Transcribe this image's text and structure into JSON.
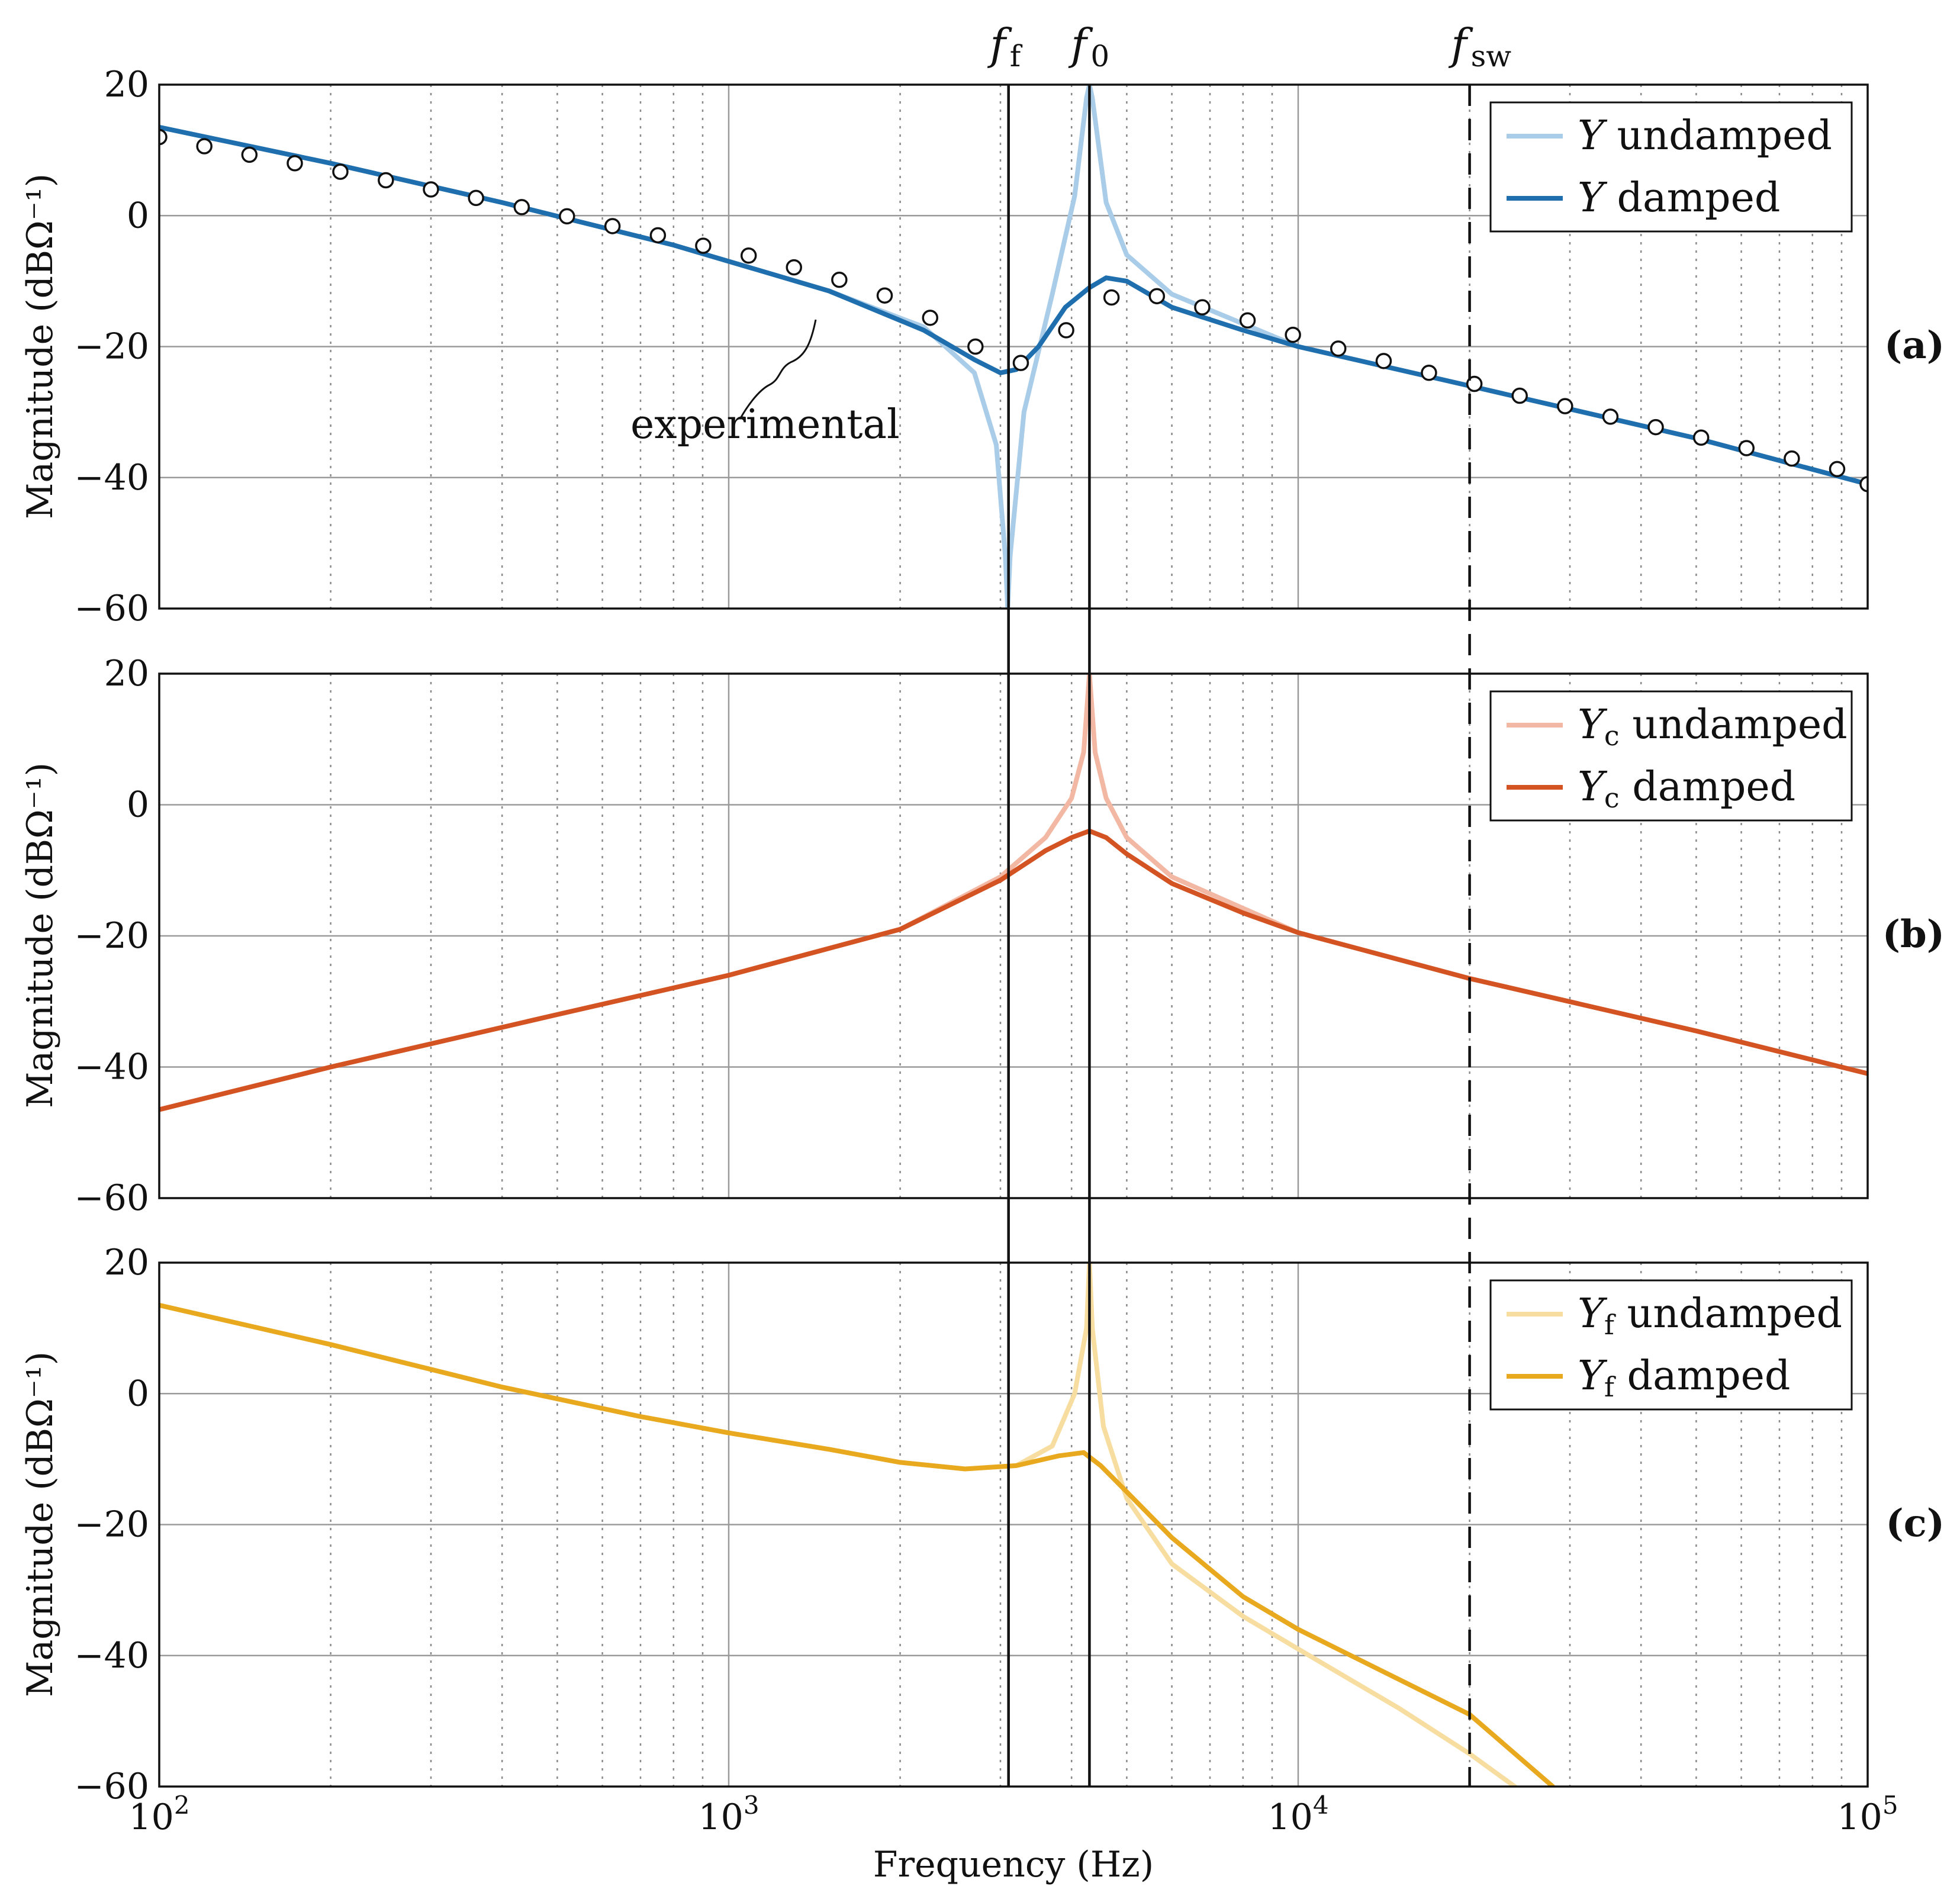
{
  "chart_data": {
    "type": "line",
    "x_scale": "log",
    "xlim": [
      100,
      100000
    ],
    "xlabel": "Frequency (Hz)",
    "x_tick_labels": [
      {
        "value": 100,
        "base": "10",
        "exp": "2"
      },
      {
        "value": 1000,
        "base": "10",
        "exp": "3"
      },
      {
        "value": 10000,
        "base": "10",
        "exp": "4"
      },
      {
        "value": 100000,
        "base": "10",
        "exp": "5"
      }
    ],
    "vertical_markers": [
      {
        "name": "ff",
        "label": "f",
        "sub": "f",
        "frequency": 3100,
        "style": "solid"
      },
      {
        "name": "f0",
        "label": "f",
        "sub": "0",
        "frequency": 4300,
        "style": "solid"
      },
      {
        "name": "fsw",
        "label": "f",
        "sub": "sw",
        "frequency": 20000,
        "style": "dashed"
      }
    ],
    "panels": [
      {
        "id": "a",
        "panel_label": "(a)",
        "ylabel": "Magnitude (dBΩ⁻¹)",
        "ylim": [
          -60,
          20
        ],
        "yticks": [
          20,
          0,
          -20,
          -40,
          -60
        ],
        "ytick_labels": [
          "20",
          "0",
          "−20",
          "−40",
          "−60"
        ],
        "legend": [
          {
            "symbol": "Y",
            "sub": "",
            "text": " undamped",
            "color": "#a9cce8"
          },
          {
            "symbol": "Y",
            "sub": "",
            "text": " damped",
            "color": "#1f6fae"
          }
        ],
        "series": [
          {
            "name": "Y undamped",
            "color": "#a9cce8",
            "points": [
              [
                100,
                13.5
              ],
              [
                200,
                8
              ],
              [
                400,
                2
              ],
              [
                800,
                -4.5
              ],
              [
                1500,
                -11.5
              ],
              [
                2200,
                -17
              ],
              [
                2700,
                -24
              ],
              [
                2950,
                -35
              ],
              [
                3060,
                -52
              ],
              [
                3090,
                -60
              ],
              [
                3120,
                -52
              ],
              [
                3300,
                -30
              ],
              [
                3700,
                -12
              ],
              [
                4050,
                3
              ],
              [
                4250,
                18
              ],
              [
                4300,
                20
              ],
              [
                4350,
                18
              ],
              [
                4600,
                2
              ],
              [
                5000,
                -6
              ],
              [
                6000,
                -12
              ],
              [
                8000,
                -16.5
              ],
              [
                10000,
                -20
              ],
              [
                20000,
                -26
              ],
              [
                50000,
                -34
              ],
              [
                100000,
                -41
              ]
            ]
          },
          {
            "name": "Y damped",
            "color": "#1f6fae",
            "points": [
              [
                100,
                13.5
              ],
              [
                200,
                8
              ],
              [
                400,
                2
              ],
              [
                800,
                -4.5
              ],
              [
                1500,
                -11.5
              ],
              [
                2200,
                -17.5
              ],
              [
                2700,
                -22
              ],
              [
                3000,
                -24
              ],
              [
                3200,
                -23.5
              ],
              [
                3500,
                -20
              ],
              [
                3900,
                -14
              ],
              [
                4300,
                -11
              ],
              [
                4600,
                -9.5
              ],
              [
                5000,
                -10
              ],
              [
                6000,
                -14
              ],
              [
                8000,
                -17.5
              ],
              [
                10000,
                -20
              ],
              [
                20000,
                -26
              ],
              [
                50000,
                -34
              ],
              [
                100000,
                -41
              ]
            ]
          }
        ],
        "experimental": {
          "label": "experimental",
          "points": [
            [
              100,
              12
            ],
            [
              120,
              10.6
            ],
            [
              144,
              9.3
            ],
            [
              173,
              8
            ],
            [
              208,
              6.7
            ],
            [
              250,
              5.4
            ],
            [
              300,
              4
            ],
            [
              360,
              2.7
            ],
            [
              433,
              1.3
            ],
            [
              520,
              -0.1
            ],
            [
              625,
              -1.6
            ],
            [
              751,
              -3
            ],
            [
              902,
              -4.6
            ],
            [
              1084,
              -6.1
            ],
            [
              1302,
              -7.9
            ],
            [
              1564,
              -9.8
            ],
            [
              1879,
              -12.2
            ],
            [
              2258,
              -15.6
            ],
            [
              2712,
              -20
            ],
            [
              3258,
              -22.5
            ],
            [
              3914,
              -17.5
            ],
            [
              4701,
              -12.5
            ],
            [
              5648,
              -12.3
            ],
            [
              6785,
              -14
            ],
            [
              8150,
              -16
            ],
            [
              9790,
              -18.2
            ],
            [
              11760,
              -20.3
            ],
            [
              14130,
              -22.2
            ],
            [
              16970,
              -24
            ],
            [
              20390,
              -25.7
            ],
            [
              24490,
              -27.5
            ],
            [
              29420,
              -29.1
            ],
            [
              35340,
              -30.7
            ],
            [
              42450,
              -32.3
            ],
            [
              51000,
              -33.9
            ],
            [
              61260,
              -35.5
            ],
            [
              73590,
              -37.1
            ],
            [
              88400,
              -38.7
            ],
            [
              100000,
              -41
            ]
          ]
        }
      },
      {
        "id": "b",
        "panel_label": "(b)",
        "ylabel": "Magnitude (dBΩ⁻¹)",
        "ylim": [
          -60,
          20
        ],
        "yticks": [
          20,
          0,
          -20,
          -40,
          -60
        ],
        "ytick_labels": [
          "20",
          "0",
          "−20",
          "−40",
          "−60"
        ],
        "legend": [
          {
            "symbol": "Y",
            "sub": "c",
            "text": " undamped",
            "color": "#f2b8a3"
          },
          {
            "symbol": "Y",
            "sub": "c",
            "text": " damped",
            "color": "#d35322"
          }
        ],
        "series": [
          {
            "name": "Yc undamped",
            "color": "#f2b8a3",
            "points": [
              [
                100,
                -46.5
              ],
              [
                200,
                -40
              ],
              [
                500,
                -32
              ],
              [
                1000,
                -26
              ],
              [
                2000,
                -19
              ],
              [
                3000,
                -11
              ],
              [
                3600,
                -5
              ],
              [
                4000,
                1
              ],
              [
                4200,
                8
              ],
              [
                4300,
                20
              ],
              [
                4400,
                8
              ],
              [
                4600,
                1
              ],
              [
                5000,
                -5
              ],
              [
                6000,
                -11
              ],
              [
                10000,
                -19.5
              ],
              [
                20000,
                -26.5
              ],
              [
                50000,
                -34.5
              ],
              [
                100000,
                -41
              ]
            ]
          },
          {
            "name": "Yc damped",
            "color": "#d35322",
            "points": [
              [
                100,
                -46.5
              ],
              [
                200,
                -40
              ],
              [
                500,
                -32
              ],
              [
                1000,
                -26
              ],
              [
                2000,
                -19
              ],
              [
                3000,
                -11.5
              ],
              [
                3600,
                -7
              ],
              [
                4000,
                -5
              ],
              [
                4300,
                -4
              ],
              [
                4600,
                -5
              ],
              [
                5000,
                -7.5
              ],
              [
                6000,
                -12
              ],
              [
                8000,
                -16.5
              ],
              [
                10000,
                -19.5
              ],
              [
                20000,
                -26.5
              ],
              [
                50000,
                -34.5
              ],
              [
                100000,
                -41
              ]
            ]
          }
        ]
      },
      {
        "id": "c",
        "panel_label": "(c)",
        "ylabel": "Magnitude (dBΩ⁻¹)",
        "ylim": [
          -60,
          20
        ],
        "yticks": [
          20,
          0,
          -20,
          -40,
          -60
        ],
        "ytick_labels": [
          "20",
          "0",
          "−20",
          "−40",
          "−60"
        ],
        "legend": [
          {
            "symbol": "Y",
            "sub": "f",
            "text": " undamped",
            "color": "#f7dea0"
          },
          {
            "symbol": "Y",
            "sub": "f",
            "text": " damped",
            "color": "#e8a91e"
          }
        ],
        "series": [
          {
            "name": "Yf undamped",
            "color": "#f7dea0",
            "points": [
              [
                100,
                13.5
              ],
              [
                200,
                7.5
              ],
              [
                400,
                1
              ],
              [
                700,
                -3.5
              ],
              [
                1000,
                -6
              ],
              [
                1500,
                -8.5
              ],
              [
                2000,
                -10.5
              ],
              [
                2600,
                -11.5
              ],
              [
                3200,
                -11
              ],
              [
                3700,
                -8
              ],
              [
                4050,
                0
              ],
              [
                4250,
                10
              ],
              [
                4300,
                20
              ],
              [
                4350,
                10
              ],
              [
                4550,
                -5
              ],
              [
                5000,
                -16
              ],
              [
                6000,
                -26
              ],
              [
                8000,
                -34
              ],
              [
                10000,
                -39
              ],
              [
                15000,
                -48
              ],
              [
                20000,
                -55
              ],
              [
                24000,
                -60
              ]
            ]
          },
          {
            "name": "Yf damped",
            "color": "#e8a91e",
            "points": [
              [
                100,
                13.5
              ],
              [
                200,
                7.5
              ],
              [
                400,
                1
              ],
              [
                700,
                -3.5
              ],
              [
                1000,
                -6
              ],
              [
                1500,
                -8.5
              ],
              [
                2000,
                -10.5
              ],
              [
                2600,
                -11.5
              ],
              [
                3200,
                -11
              ],
              [
                3800,
                -9.5
              ],
              [
                4200,
                -9
              ],
              [
                4500,
                -11
              ],
              [
                5000,
                -15
              ],
              [
                6000,
                -22
              ],
              [
                8000,
                -31
              ],
              [
                10000,
                -36
              ],
              [
                20000,
                -49
              ],
              [
                28000,
                -60
              ]
            ]
          }
        ]
      }
    ]
  }
}
